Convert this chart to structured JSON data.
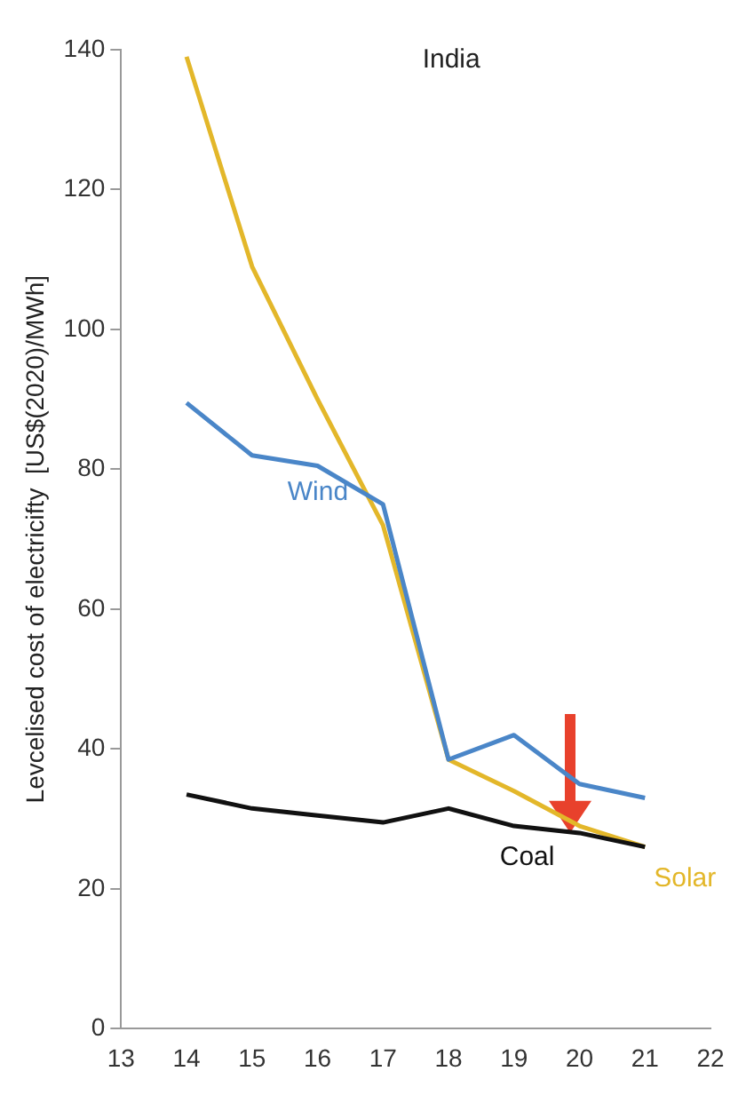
{
  "chart_data": {
    "type": "line",
    "title": "India",
    "ylabel": "Levcelised cost of electricifty  [US$(2020)/MWh]",
    "x": [
      14,
      15,
      16,
      17,
      18,
      19,
      20,
      21
    ],
    "series": [
      {
        "name": "Wind",
        "color": "#4a86c8",
        "values": [
          89.5,
          82,
          80.5,
          75,
          38.5,
          42,
          35,
          33
        ]
      },
      {
        "name": "Coal",
        "color": "#111111",
        "values": [
          33.5,
          31.5,
          30.5,
          29.5,
          31.5,
          29,
          28,
          26
        ]
      },
      {
        "name": "Solar",
        "color": "#e3b72a",
        "values": [
          139,
          109,
          90,
          72,
          38.5,
          34,
          29,
          26
        ]
      }
    ],
    "xlim": [
      13,
      22
    ],
    "xticks": [
      13,
      14,
      15,
      16,
      17,
      18,
      19,
      20,
      21,
      22
    ],
    "ylim": [
      0,
      140
    ],
    "yticks": [
      0,
      20,
      40,
      60,
      80,
      100,
      120,
      140
    ],
    "grid": false,
    "legend": false,
    "marker": "none",
    "line_style": "solid"
  }
}
